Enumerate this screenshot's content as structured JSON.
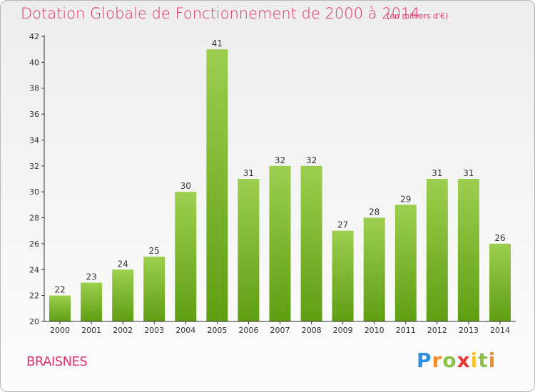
{
  "header": {
    "title": "Dotation Globale de Fonctionnement de 2000 à 2014",
    "unit": "(en milliers d'€)"
  },
  "footer": {
    "commune": "BRAISNES",
    "logo": "Proxiti"
  },
  "colors": {
    "title": "#e0306e",
    "bar_light": "#9ccf4e",
    "bar_dark": "#5f9e13",
    "axis": "#333333"
  },
  "chart_data": {
    "type": "bar",
    "title": "Dotation Globale de Fonctionnement de 2000 à 2014",
    "subtitle": "(en milliers d'€)",
    "xlabel": "",
    "ylabel": "",
    "categories": [
      "2000",
      "2001",
      "2002",
      "2003",
      "2004",
      "2005",
      "2006",
      "2007",
      "2008",
      "2009",
      "2010",
      "2011",
      "2012",
      "2013",
      "2014"
    ],
    "values": [
      22,
      23,
      24,
      25,
      30,
      41,
      31,
      32,
      32,
      27,
      28,
      29,
      31,
      31,
      26
    ],
    "ylim": [
      20,
      42
    ],
    "yticks": [
      20,
      22,
      24,
      26,
      28,
      30,
      32,
      34,
      36,
      38,
      40,
      42
    ],
    "grid": false,
    "legend": "none"
  }
}
